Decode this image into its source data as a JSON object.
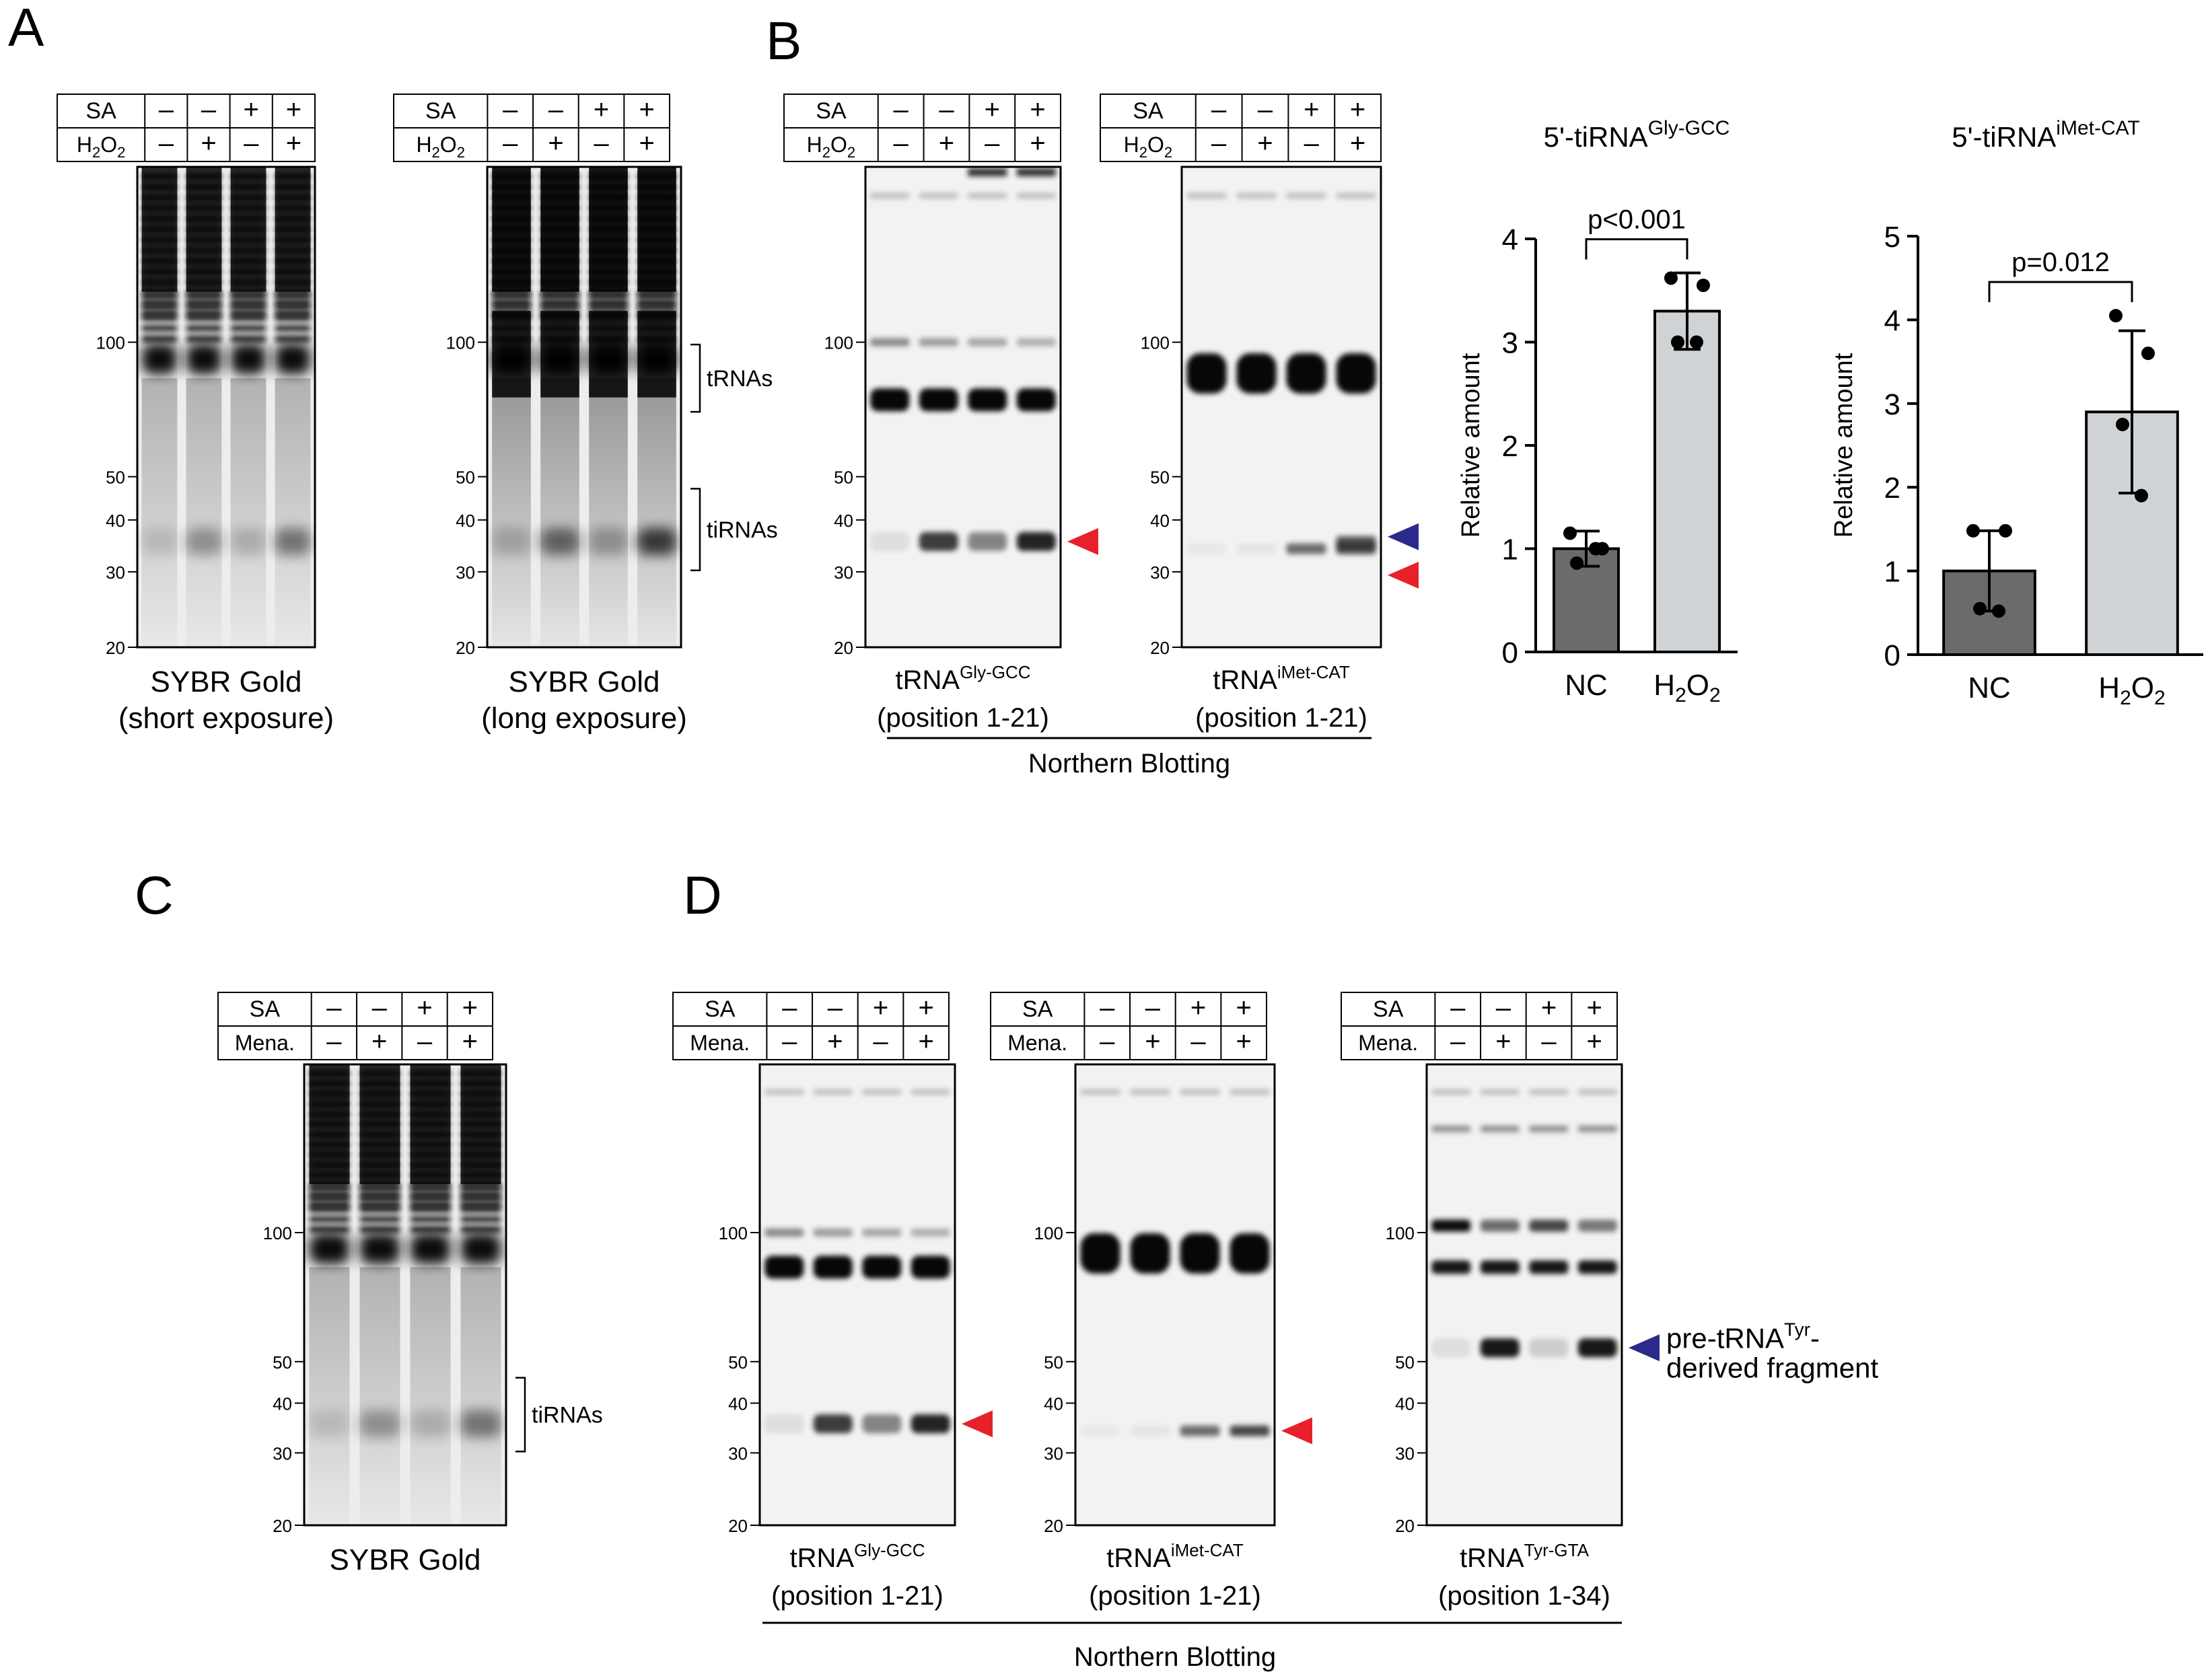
{
  "panels": [
    {
      "id": "A",
      "letter": "A"
    },
    {
      "id": "B",
      "letter": "B"
    },
    {
      "id": "C",
      "letter": "C"
    },
    {
      "id": "D",
      "letter": "D"
    }
  ],
  "treatment": {
    "row1_label": "SA",
    "row2_labels": {
      "h2o2": "H",
      "mena": "Mena."
    },
    "row1_signs": [
      "–",
      "–",
      "+",
      "+"
    ],
    "row2_signs": [
      "–",
      "+",
      "–",
      "+"
    ]
  },
  "markers": [
    "100",
    "50",
    "40",
    "30",
    "20"
  ],
  "gels": [
    {
      "id": "gelA1",
      "panel": "A",
      "kind": "sybr_short",
      "row2": "h2o2",
      "line1": "SYBR Gold",
      "line2": "(short exposure)"
    },
    {
      "id": "gelA2",
      "panel": "A",
      "kind": "sybr_long",
      "row2": "h2o2",
      "line1": "SYBR Gold",
      "line2": "(long exposure)",
      "bracket1": "tRNAs",
      "bracket2": "tiRNAs"
    },
    {
      "id": "gelB1",
      "panel": "B",
      "kind": "nb_gly",
      "row2": "h2o2",
      "cap_base": "tRNA",
      "cap_sup": "Gly-GCC",
      "line2": "(position 1-21)"
    },
    {
      "id": "gelB2",
      "panel": "B",
      "kind": "nb_imet",
      "row2": "h2o2",
      "cap_base": "tRNA",
      "cap_sup": "iMet-CAT",
      "line2": "(position 1-21)"
    },
    {
      "id": "gelC",
      "panel": "C",
      "kind": "sybr_mena",
      "row2": "mena",
      "line1": "SYBR Gold",
      "bracket": "tiRNAs"
    },
    {
      "id": "gelD1",
      "panel": "D",
      "kind": "nb_gly_mena",
      "row2": "mena",
      "cap_base": "tRNA",
      "cap_sup": "Gly-GCC",
      "line2": "(position 1-21)"
    },
    {
      "id": "gelD2",
      "panel": "D",
      "kind": "nb_imet_mena",
      "row2": "mena",
      "cap_base": "tRNA",
      "cap_sup": "iMet-CAT",
      "line2": "(position 1-21)"
    },
    {
      "id": "gelD3",
      "panel": "D",
      "kind": "nb_tyr",
      "row2": "mena",
      "cap_base": "tRNA",
      "cap_sup": "Tyr-GTA",
      "line2": "(position 1-34)",
      "pre_base": "pre-tRNA",
      "pre_sup": "Tyr",
      "pre_dash": "-",
      "pre_line2": "derived fragment"
    }
  ],
  "northern_label": "Northern Blotting",
  "arrow_colors": {
    "red": "#e8202a",
    "blue": "#2a2a8c"
  },
  "chart_data": [
    {
      "type": "bar",
      "title_prefix": "5'-tiRNA",
      "title_sup": "Gly-GCC",
      "categories": [
        "NC",
        "H2O2"
      ],
      "values": [
        1.0,
        3.3
      ],
      "errors": [
        0.17,
        0.37
      ],
      "points": [
        [
          1.15,
          1.0,
          0.86,
          1.0
        ],
        [
          3.62,
          3.55,
          3.0,
          3.0
        ]
      ],
      "ylabel": "Relative amount",
      "ylim": [
        0,
        4
      ],
      "yticks": [
        "0",
        "1",
        "2",
        "3",
        "4"
      ],
      "pvalue": "p<0.001",
      "bar_colors": [
        "#6b6b6b",
        "#d0d3d6"
      ]
    },
    {
      "type": "bar",
      "title_prefix": "5'-tiRNA",
      "title_sup": "iMet-CAT",
      "categories": [
        "NC",
        "H2O2"
      ],
      "values": [
        1.0,
        2.9
      ],
      "errors": [
        0.48,
        0.97
      ],
      "points": [
        [
          1.48,
          1.48,
          0.55,
          0.52
        ],
        [
          4.05,
          3.6,
          2.75,
          1.9
        ]
      ],
      "ylabel": "Relative amount",
      "ylim": [
        0,
        5
      ],
      "yticks": [
        "0",
        "1",
        "2",
        "3",
        "4",
        "5"
      ],
      "pvalue": "p=0.012",
      "bar_colors": [
        "#6b6b6b",
        "#d0d3d6"
      ]
    }
  ]
}
